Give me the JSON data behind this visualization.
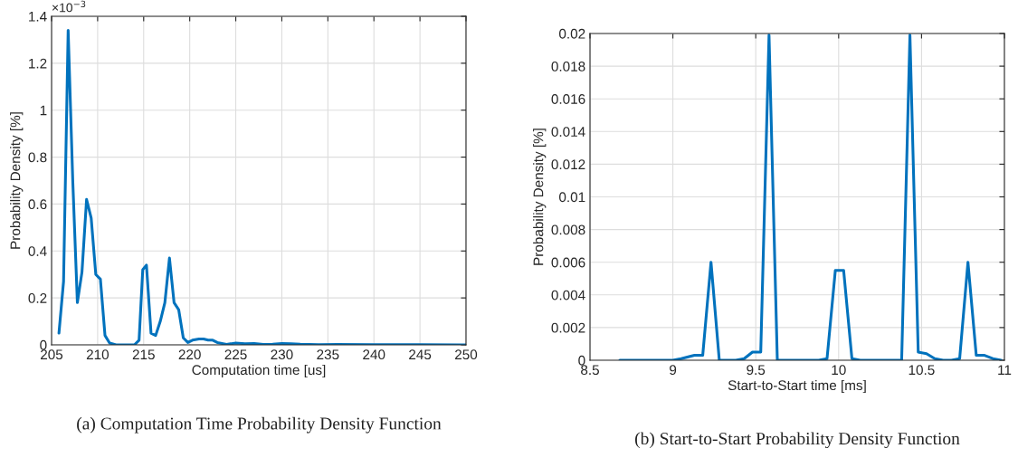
{
  "chart_data": [
    {
      "type": "line",
      "xlabel": "Computation time [us]",
      "ylabel": "Probability Density [%]",
      "x": [
        205.8,
        206.3,
        206.8,
        207.3,
        207.8,
        208.3,
        208.8,
        209.3,
        209.8,
        210.3,
        210.8,
        211.3,
        212,
        214,
        214.5,
        214.9,
        215.3,
        215.8,
        216.3,
        216.8,
        217.3,
        217.8,
        218.3,
        218.8,
        219.3,
        219.8,
        220.3,
        221,
        221.5,
        222,
        222.5,
        223,
        224,
        225,
        226,
        227,
        228,
        229,
        230,
        231,
        232,
        234,
        236,
        240,
        245,
        250
      ],
      "series": [
        {
          "color": "#0072bd",
          "values": [
            0.05,
            0.27,
            1.34,
            0.7,
            0.18,
            0.31,
            0.62,
            0.54,
            0.3,
            0.28,
            0.04,
            0.008,
            0,
            0,
            0.02,
            0.32,
            0.34,
            0.05,
            0.04,
            0.1,
            0.18,
            0.37,
            0.18,
            0.15,
            0.03,
            0.01,
            0.02,
            0.025,
            0.025,
            0.02,
            0.02,
            0.01,
            0.002,
            0.008,
            0.005,
            0.006,
            0.002,
            0.003,
            0.006,
            0.005,
            0.003,
            0.001,
            0.002,
            0.001,
            0.001,
            0
          ]
        }
      ],
      "xlim": [
        205,
        250
      ],
      "xticks": [
        205,
        210,
        215,
        220,
        225,
        230,
        235,
        240,
        245,
        250
      ],
      "ylim": [
        0,
        1.4
      ],
      "yticks": [
        0,
        0.2,
        0.4,
        0.6,
        0.8,
        1,
        1.2,
        1.4
      ],
      "grid": true,
      "marker": "none",
      "line_style": "solid",
      "annotations": [
        "×10$^{−3}$",
        "(a) Computation Time Probability Density Function"
      ]
    },
    {
      "type": "line",
      "xlabel": "Start-to-Start time [ms]",
      "ylabel": "Probability Density [%]",
      "x": [
        8.68,
        9.0,
        9.05,
        9.13,
        9.18,
        9.23,
        9.28,
        9.33,
        9.38,
        9.43,
        9.48,
        9.53,
        9.58,
        9.63,
        9.88,
        9.93,
        9.98,
        10.03,
        10.08,
        10.13,
        10.38,
        10.43,
        10.48,
        10.53,
        10.58,
        10.63,
        10.68,
        10.73,
        10.78,
        10.83,
        10.88,
        10.93,
        10.98
      ],
      "series": [
        {
          "color": "#0072bd",
          "values": [
            0,
            0,
            0.0001,
            0.0003,
            0.0003,
            0.006,
            0,
            0,
            0,
            0.0001,
            0.0005,
            0.0005,
            0.0199,
            0,
            0,
            0.0001,
            0.0055,
            0.0055,
            0.0001,
            0,
            0,
            0.0199,
            0.0005,
            0.0004,
            0.0001,
            0,
            0,
            0.0001,
            0.006,
            0.0003,
            0.0003,
            0.0001,
            0
          ]
        }
      ],
      "xlim": [
        8.5,
        11
      ],
      "xticks": [
        8.5,
        9,
        9.5,
        10,
        10.5,
        11
      ],
      "ylim": [
        0,
        0.02
      ],
      "yticks": [
        0,
        0.002,
        0.004,
        0.006,
        0.008,
        0.01,
        0.012,
        0.014,
        0.016,
        0.018,
        0.02
      ],
      "grid": true,
      "marker": "none",
      "line_style": "solid",
      "annotations": [
        "(b) Start-to-Start Probability Density Function"
      ]
    }
  ]
}
